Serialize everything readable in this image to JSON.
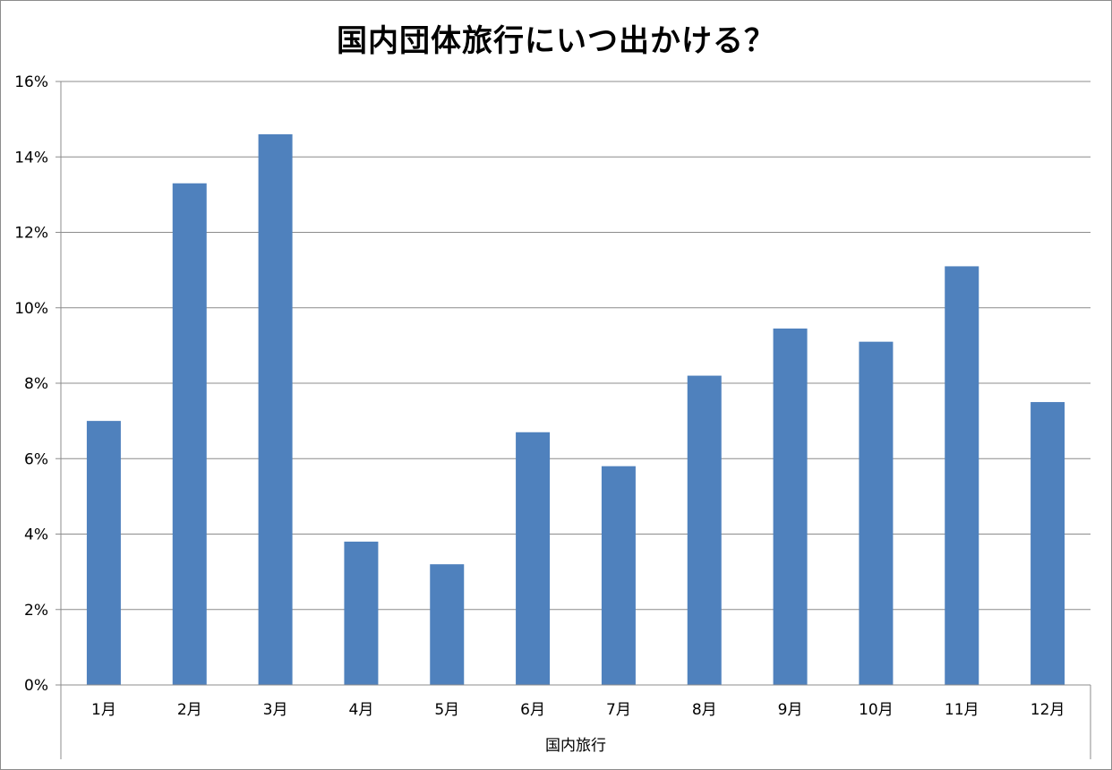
{
  "chart_data": {
    "type": "bar",
    "title": "国内団体旅行にいつ出かける？",
    "categories": [
      "1月",
      "2月",
      "3月",
      "4月",
      "5月",
      "6月",
      "7月",
      "8月",
      "9月",
      "10月",
      "11月",
      "12月"
    ],
    "x_group_label": "国内旅行",
    "series": [
      {
        "values": [
          7.0,
          13.3,
          14.6,
          3.8,
          3.2,
          6.7,
          5.8,
          8.2,
          9.45,
          9.1,
          11.1,
          7.5
        ]
      }
    ],
    "ylim": [
      0,
      16
    ],
    "y_ticks": [
      "0%",
      "2%",
      "4%",
      "6%",
      "8%",
      "10%",
      "12%",
      "14%",
      "16%"
    ],
    "y_tick_values": [
      0,
      2,
      4,
      6,
      8,
      10,
      12,
      14,
      16
    ],
    "grid": true,
    "colors": {
      "bar": "#4f81bd",
      "grid": "#8c8c8c",
      "axis": "#8c8c8c"
    }
  }
}
